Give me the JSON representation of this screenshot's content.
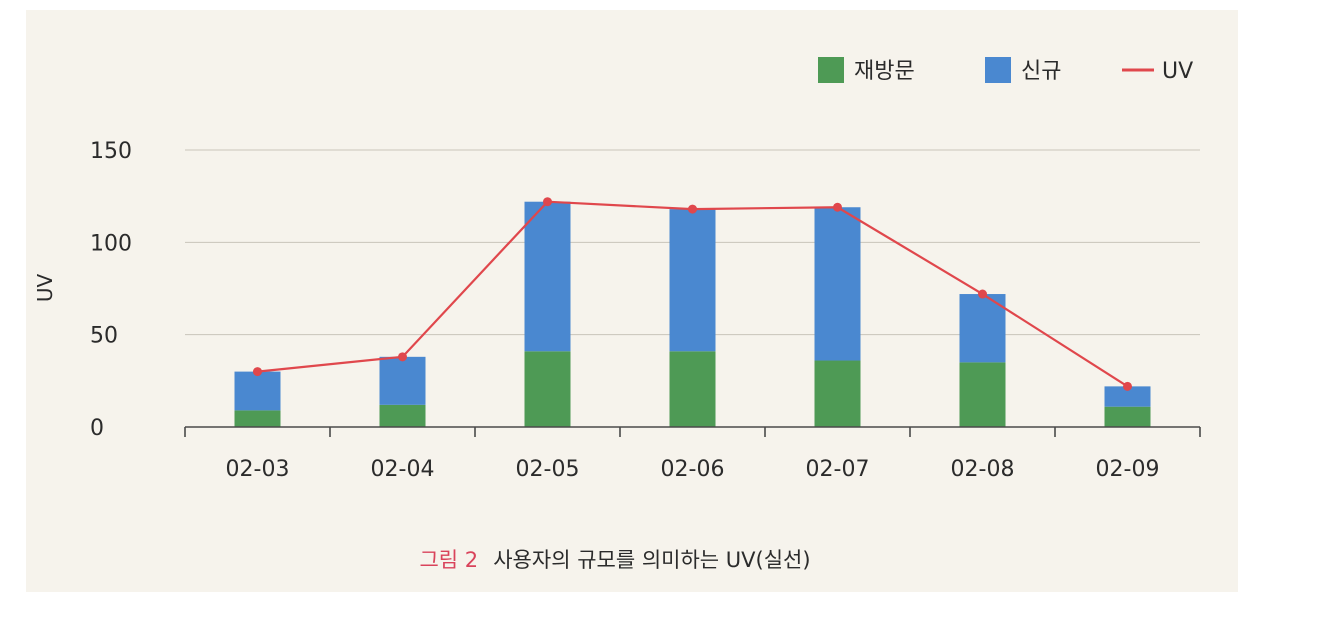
{
  "chart_data": {
    "type": "bar",
    "stacked": true,
    "categories": [
      "02-03",
      "02-04",
      "02-05",
      "02-06",
      "02-07",
      "02-08",
      "02-09"
    ],
    "series": [
      {
        "name": "재방문",
        "kind": "bar",
        "color": "#4e9a55",
        "values": [
          9,
          12,
          41,
          41,
          36,
          35,
          11
        ]
      },
      {
        "name": "신규",
        "kind": "bar",
        "color": "#4a88d0",
        "values": [
          21,
          26,
          81,
          77,
          83,
          37,
          11
        ]
      },
      {
        "name": "UV",
        "kind": "line",
        "color": "#e0474c",
        "values": [
          30,
          38,
          122,
          118,
          119,
          72,
          22
        ]
      }
    ],
    "ylabel": "UV",
    "xlabel": "",
    "ylim": [
      0,
      150
    ],
    "yticks": [
      0,
      50,
      100,
      150
    ],
    "grid": true,
    "legend_position": "top-right"
  },
  "caption": {
    "figure_label": "그림 2",
    "text": "사용자의 규모를 의미하는 UV(실선)",
    "label_color": "#d9435b"
  }
}
